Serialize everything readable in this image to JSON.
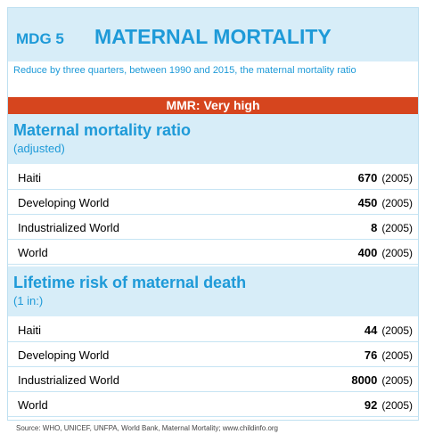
{
  "header": {
    "tag": "MDG 5",
    "title": "MATERNAL MORTALITY"
  },
  "goal": "Reduce by three quarters, between 1990 and 2015, the maternal mortality ratio",
  "status": "MMR: Very high",
  "sections": [
    {
      "title": "Maternal mortality ratio",
      "subtitle": "(adjusted)",
      "rows": [
        {
          "label": "Haiti",
          "value": "670",
          "year": "(2005)"
        },
        {
          "label": "Developing World",
          "value": "450",
          "year": "(2005)"
        },
        {
          "label": "Industrialized World",
          "value": "8",
          "year": "(2005)"
        },
        {
          "label": "World",
          "value": "400",
          "year": "(2005)"
        }
      ]
    },
    {
      "title": "Lifetime risk of maternal death",
      "subtitle": "(1 in:)",
      "rows": [
        {
          "label": "Haiti",
          "value": "44",
          "year": "(2005)"
        },
        {
          "label": "Developing World",
          "value": "76",
          "year": "(2005)"
        },
        {
          "label": "Industrialized World",
          "value": "8000",
          "year": "(2005)"
        },
        {
          "label": "World",
          "value": "92",
          "year": "(2005)"
        }
      ]
    }
  ],
  "source": "Source: WHO, UNICEF, UNFPA, World Bank, Maternal Mortality; www.childinfo.org"
}
